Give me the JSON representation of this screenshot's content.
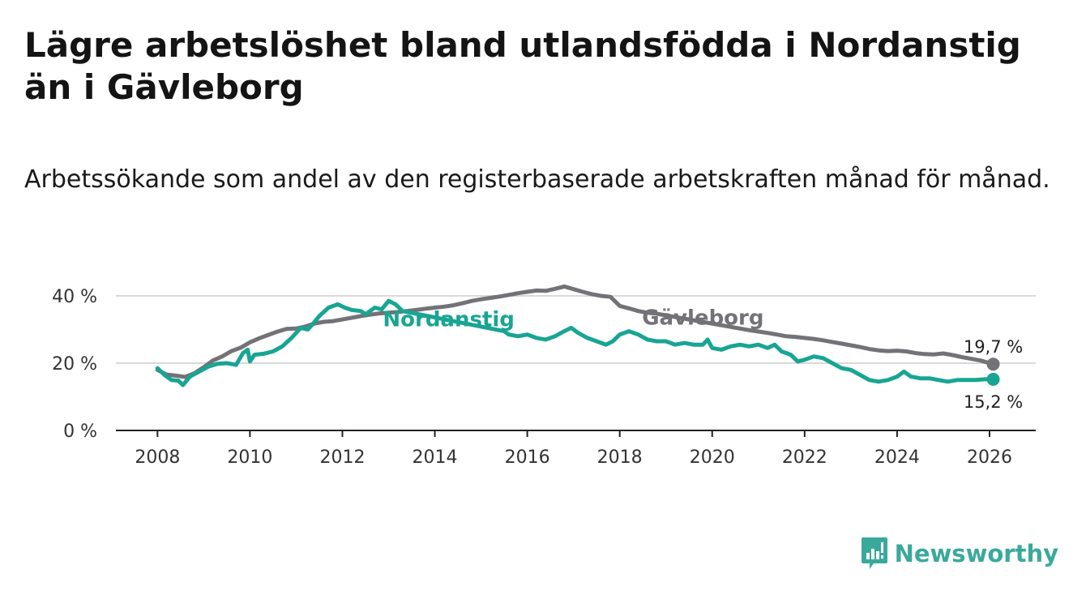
{
  "title": "Lägre arbetslöshet bland utlandsfödda i Nordanstig än i Gävleborg",
  "subtitle": "Arbetssökande som andel av den registerbaserade arbetskraften månad för månad.",
  "brand": {
    "name": "Newsworthy"
  },
  "colors": {
    "gavleborg": "#737277",
    "nordanstig": "#18a593",
    "grid": "#d9d9d9",
    "axis": "#222222",
    "brand": "#3aa99c"
  },
  "chart_data": {
    "type": "line",
    "title": "Lägre arbetslöshet bland utlandsfödda i Nordanstig än i Gävleborg",
    "xlabel": "",
    "ylabel": "",
    "xlim": [
      2007.1,
      2027.0
    ],
    "ylim": [
      0,
      40
    ],
    "x_ticks": [
      2008,
      2010,
      2012,
      2014,
      2016,
      2018,
      2020,
      2022,
      2024,
      2026
    ],
    "x_tick_labels": [
      "2008",
      "2010",
      "2012",
      "2014",
      "2016",
      "2018",
      "2020",
      "2022",
      "2024",
      "2026"
    ],
    "y_ticks": [
      0,
      20,
      40
    ],
    "y_tick_labels": [
      "0 %",
      "20 %",
      "40 %"
    ],
    "grid": true,
    "series": [
      {
        "name": "Gävleborg",
        "end_label": "19,7 %",
        "points": [
          [
            2008.0,
            18.0
          ],
          [
            2008.2,
            16.6
          ],
          [
            2008.4,
            16.3
          ],
          [
            2008.6,
            15.9
          ],
          [
            2008.8,
            17.0
          ],
          [
            2009.0,
            18.8
          ],
          [
            2009.2,
            20.8
          ],
          [
            2009.4,
            22.0
          ],
          [
            2009.6,
            23.6
          ],
          [
            2009.8,
            24.6
          ],
          [
            2010.0,
            26.2
          ],
          [
            2010.2,
            27.4
          ],
          [
            2010.4,
            28.4
          ],
          [
            2010.6,
            29.4
          ],
          [
            2010.8,
            30.2
          ],
          [
            2011.0,
            30.3
          ],
          [
            2011.2,
            30.9
          ],
          [
            2011.4,
            31.8
          ],
          [
            2011.6,
            32.3
          ],
          [
            2011.8,
            32.5
          ],
          [
            2012.0,
            33.0
          ],
          [
            2012.2,
            33.5
          ],
          [
            2012.4,
            34.0
          ],
          [
            2012.6,
            34.4
          ],
          [
            2012.8,
            34.8
          ],
          [
            2013.0,
            35.0
          ],
          [
            2013.2,
            35.2
          ],
          [
            2013.4,
            35.5
          ],
          [
            2013.6,
            35.8
          ],
          [
            2013.8,
            36.2
          ],
          [
            2014.0,
            36.5
          ],
          [
            2014.2,
            36.8
          ],
          [
            2014.4,
            37.2
          ],
          [
            2014.6,
            37.8
          ],
          [
            2014.8,
            38.5
          ],
          [
            2015.0,
            39.0
          ],
          [
            2015.2,
            39.4
          ],
          [
            2015.4,
            39.8
          ],
          [
            2015.6,
            40.3
          ],
          [
            2015.8,
            40.8
          ],
          [
            2016.0,
            41.2
          ],
          [
            2016.2,
            41.6
          ],
          [
            2016.4,
            41.5
          ],
          [
            2016.6,
            42.1
          ],
          [
            2016.8,
            42.8
          ],
          [
            2017.0,
            42.0
          ],
          [
            2017.2,
            41.2
          ],
          [
            2017.4,
            40.5
          ],
          [
            2017.6,
            40.0
          ],
          [
            2017.8,
            39.7
          ],
          [
            2018.0,
            37.0
          ],
          [
            2018.2,
            36.3
          ],
          [
            2018.4,
            35.5
          ],
          [
            2018.6,
            35.0
          ],
          [
            2018.8,
            34.7
          ],
          [
            2020.8,
            29.8
          ],
          [
            2021.0,
            29.4
          ],
          [
            2021.2,
            29.0
          ],
          [
            2021.4,
            28.5
          ],
          [
            2021.6,
            28.0
          ],
          [
            2021.8,
            27.8
          ],
          [
            2022.0,
            27.5
          ],
          [
            2022.2,
            27.2
          ],
          [
            2022.4,
            26.8
          ],
          [
            2022.6,
            26.3
          ],
          [
            2022.8,
            25.8
          ],
          [
            2023.0,
            25.3
          ],
          [
            2023.2,
            24.8
          ],
          [
            2023.4,
            24.2
          ],
          [
            2023.6,
            23.8
          ],
          [
            2023.8,
            23.6
          ],
          [
            2024.0,
            23.7
          ],
          [
            2024.2,
            23.5
          ],
          [
            2024.4,
            23.0
          ],
          [
            2024.6,
            22.7
          ],
          [
            2024.8,
            22.6
          ],
          [
            2025.0,
            22.9
          ],
          [
            2025.2,
            22.4
          ],
          [
            2025.4,
            21.8
          ],
          [
            2025.6,
            21.3
          ],
          [
            2025.8,
            20.8
          ],
          [
            2026.08,
            19.7
          ]
        ]
      },
      {
        "name": "Nordanstig",
        "end_label": "15,2 %",
        "points": [
          [
            2008.0,
            18.5
          ],
          [
            2008.15,
            16.5
          ],
          [
            2008.3,
            15.0
          ],
          [
            2008.45,
            14.8
          ],
          [
            2008.55,
            13.5
          ],
          [
            2008.7,
            16.0
          ],
          [
            2008.9,
            17.5
          ],
          [
            2009.1,
            19.0
          ],
          [
            2009.3,
            19.8
          ],
          [
            2009.5,
            20.0
          ],
          [
            2009.7,
            19.5
          ],
          [
            2009.85,
            23.0
          ],
          [
            2009.95,
            24.0
          ],
          [
            2010.0,
            20.5
          ],
          [
            2010.1,
            22.5
          ],
          [
            2010.3,
            22.8
          ],
          [
            2010.5,
            23.5
          ],
          [
            2010.7,
            25.0
          ],
          [
            2010.9,
            27.5
          ],
          [
            2011.1,
            30.5
          ],
          [
            2011.25,
            30.0
          ],
          [
            2011.35,
            31.5
          ],
          [
            2011.5,
            34.0
          ],
          [
            2011.7,
            36.5
          ],
          [
            2011.9,
            37.5
          ],
          [
            2012.05,
            36.5
          ],
          [
            2012.2,
            35.8
          ],
          [
            2012.4,
            35.5
          ],
          [
            2012.5,
            34.5
          ],
          [
            2012.7,
            36.5
          ],
          [
            2012.85,
            36.0
          ],
          [
            2013.0,
            38.5
          ],
          [
            2013.15,
            37.5
          ],
          [
            2013.3,
            35.5
          ],
          [
            2015.5,
            29.5
          ],
          [
            2015.6,
            28.5
          ],
          [
            2015.8,
            28.0
          ],
          [
            2016.0,
            28.5
          ],
          [
            2016.2,
            27.5
          ],
          [
            2016.4,
            27.0
          ],
          [
            2016.6,
            28.0
          ],
          [
            2016.8,
            29.5
          ],
          [
            2016.95,
            30.5
          ],
          [
            2017.1,
            29.0
          ],
          [
            2017.3,
            27.5
          ],
          [
            2017.5,
            26.5
          ],
          [
            2017.7,
            25.5
          ],
          [
            2017.85,
            26.5
          ],
          [
            2018.0,
            28.5
          ],
          [
            2018.2,
            29.5
          ],
          [
            2018.4,
            28.5
          ],
          [
            2018.6,
            27.0
          ],
          [
            2018.8,
            26.5
          ],
          [
            2019.0,
            26.5
          ],
          [
            2019.2,
            25.5
          ],
          [
            2019.4,
            26.0
          ],
          [
            2019.6,
            25.5
          ],
          [
            2019.8,
            25.5
          ],
          [
            2019.9,
            27.0
          ],
          [
            2020.0,
            24.5
          ],
          [
            2020.2,
            24.0
          ],
          [
            2020.4,
            25.0
          ],
          [
            2020.6,
            25.5
          ],
          [
            2020.8,
            25.0
          ],
          [
            2021.0,
            25.5
          ],
          [
            2021.2,
            24.5
          ],
          [
            2021.35,
            25.5
          ],
          [
            2021.5,
            23.5
          ],
          [
            2021.7,
            22.5
          ],
          [
            2021.85,
            20.5
          ],
          [
            2022.0,
            21.0
          ],
          [
            2022.2,
            22.0
          ],
          [
            2022.4,
            21.5
          ],
          [
            2022.6,
            20.0
          ],
          [
            2022.8,
            18.5
          ],
          [
            2023.0,
            18.0
          ],
          [
            2023.2,
            16.5
          ],
          [
            2023.4,
            15.0
          ],
          [
            2023.6,
            14.5
          ],
          [
            2023.8,
            15.0
          ],
          [
            2024.0,
            16.0
          ],
          [
            2024.15,
            17.5
          ],
          [
            2024.3,
            16.0
          ],
          [
            2024.5,
            15.5
          ],
          [
            2024.7,
            15.5
          ],
          [
            2024.9,
            15.0
          ],
          [
            2025.1,
            14.5
          ],
          [
            2025.3,
            15.0
          ],
          [
            2025.5,
            15.0
          ],
          [
            2025.7,
            15.0
          ],
          [
            2025.9,
            15.2
          ],
          [
            2026.08,
            15.2
          ]
        ]
      }
    ]
  }
}
